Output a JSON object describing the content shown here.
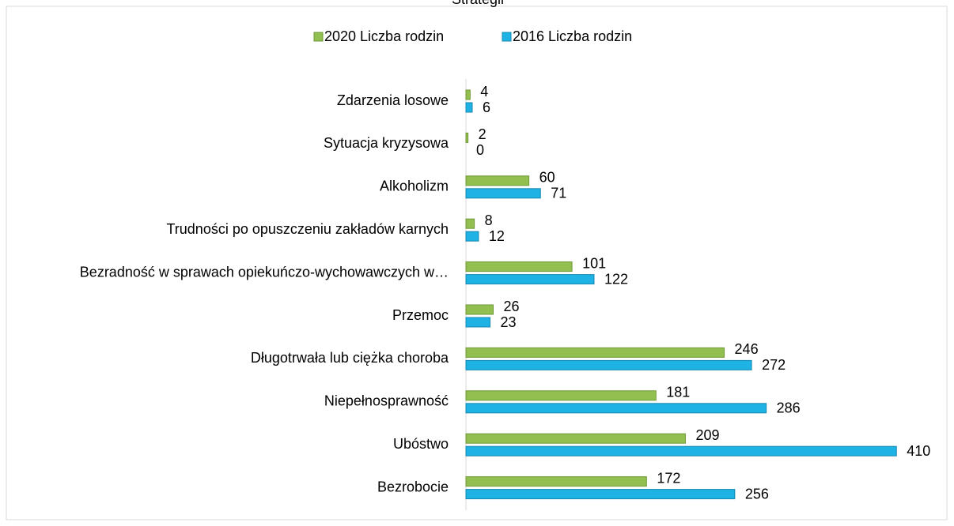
{
  "chart_data": {
    "type": "hbar",
    "title": "Strategii",
    "categories": [
      "Zdarzenia losowe",
      "Sytuacja kryzysowa",
      "Alkoholizm",
      "Trudności po opuszczeniu zakładów karnych",
      "Bezradność w sprawach opiekuńczo-wychowawczych w…",
      "Przemoc",
      "Długotrwała lub ciężka choroba",
      "Niepełnosprawność",
      "Ubóstwo",
      "Bezrobocie"
    ],
    "series": [
      {
        "name": "2020 Liczba rodzin",
        "color": "#92c050",
        "values": [
          4,
          2,
          60,
          8,
          101,
          26,
          246,
          181,
          209,
          172
        ]
      },
      {
        "name": "2016 Liczba rodzin",
        "color": "#1fb2e4",
        "values": [
          6,
          0,
          71,
          12,
          122,
          23,
          272,
          286,
          410,
          256
        ]
      }
    ],
    "xlim": [
      0,
      455
    ],
    "legend": "top"
  }
}
